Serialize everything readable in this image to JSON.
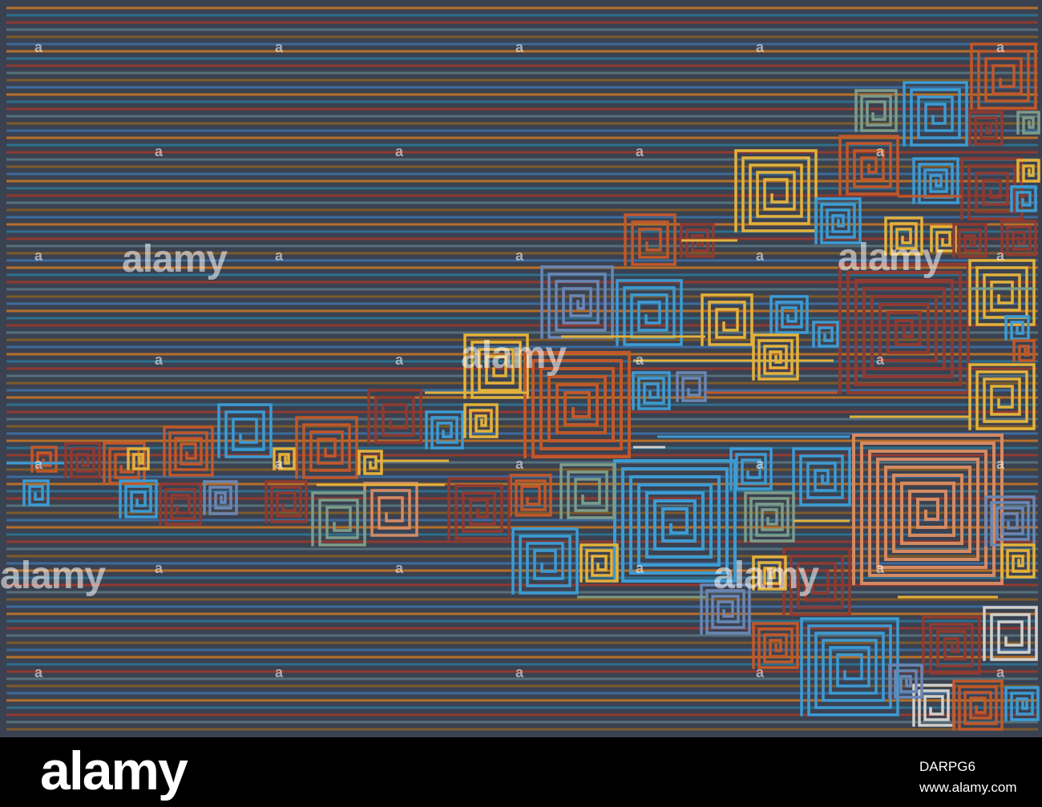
{
  "palette": [
    "#c0582a",
    "#3d9bd2",
    "#e3b23c",
    "#8f3a31",
    "#6b86b4",
    "#7c9c88",
    "#d48a62",
    "#b06a2c",
    "#d0d0cc",
    "#a8533a"
  ],
  "stripe_colors": [
    "#b5702a",
    "#2f6e8c",
    "#8f3a31",
    "#55707a",
    "#7c5a2b",
    "#3d6a9a"
  ],
  "watermark": "alamy",
  "footer": {
    "logo": "alamy",
    "code": "DARPG6",
    "url": "www.alamy.com"
  }
}
